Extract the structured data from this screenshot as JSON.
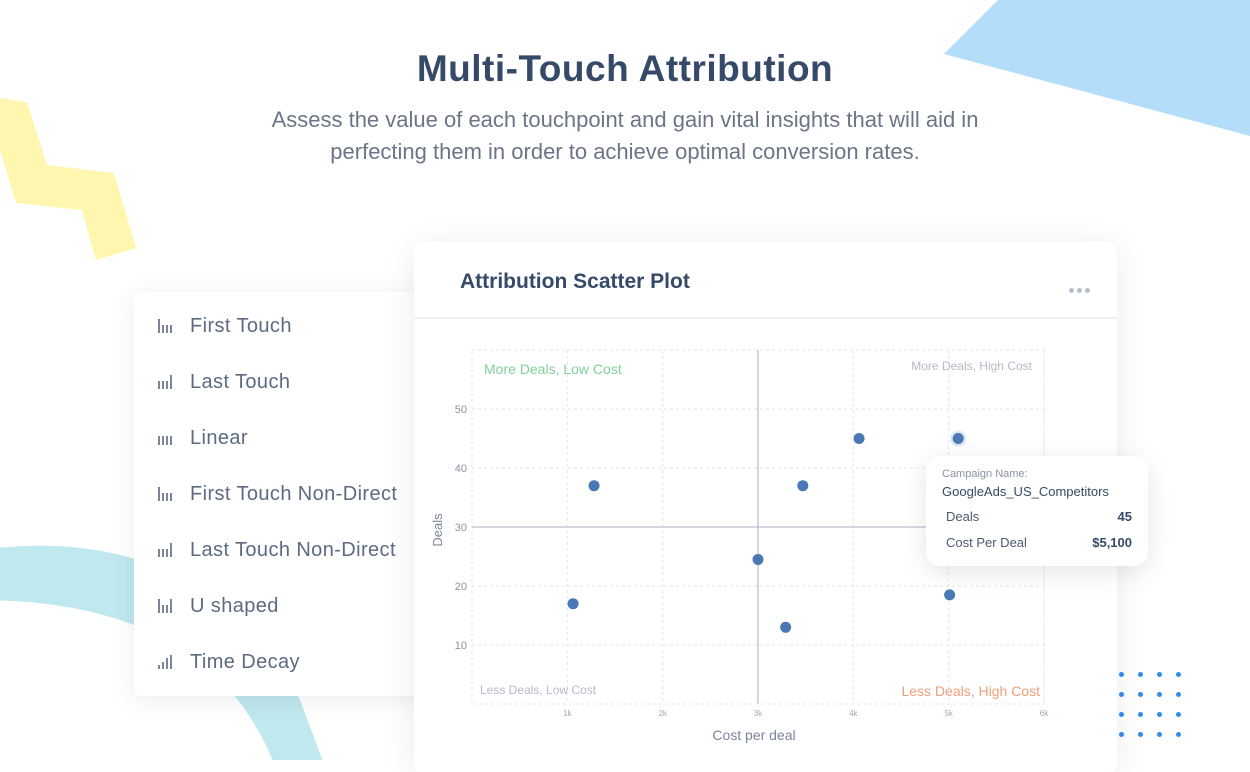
{
  "header": {
    "title": "Multi-Touch Attribution",
    "subtitle_line1": "Assess the value of each touchpoint and gain vital insights that will aid in",
    "subtitle_line2": "perfecting them in order to achieve optimal conversion rates."
  },
  "menu": {
    "items": [
      {
        "label": "First Touch",
        "icon": "first-touch-bars-icon"
      },
      {
        "label": "Last Touch",
        "icon": "last-touch-bars-icon"
      },
      {
        "label": "Linear",
        "icon": "linear-bars-icon"
      },
      {
        "label": "First Touch Non-Direct",
        "icon": "first-touch-bars-icon"
      },
      {
        "label": "Last Touch Non-Direct",
        "icon": "last-touch-bars-icon"
      },
      {
        "label": "U shaped",
        "icon": "u-shaped-bars-icon"
      },
      {
        "label": "Time Decay",
        "icon": "time-decay-bars-icon"
      }
    ]
  },
  "card": {
    "title": "Attribution Scatter Plot",
    "more_icon": "more-horizontal-icon"
  },
  "tooltip": {
    "label": "Campaign Name:",
    "name": "GoogleAds_US_Competitors",
    "rows": [
      {
        "key": "Deals",
        "value": "45"
      },
      {
        "key": "Cost Per Deal",
        "value": "$5,100"
      }
    ]
  },
  "colors": {
    "title": "#344a68",
    "point": "#4a78b5",
    "quadrant_good": "#7fd19a",
    "quadrant_bad": "#ee9e7a",
    "quadrant_neutral": "#b4bbc6",
    "deco_yellow": "#fff6b0",
    "deco_blue": "#b3ddf8",
    "deco_teal": "#c0e8ef",
    "dots": "#2f8cf0"
  },
  "chart_data": {
    "type": "scatter",
    "title": "Attribution Scatter Plot",
    "xlabel": "Cost per deal",
    "ylabel": "Deals",
    "x_ticks": [
      "1k",
      "2k",
      "3k",
      "4k",
      "5k",
      "6k"
    ],
    "y_ticks": [
      10,
      20,
      30,
      40,
      50
    ],
    "xlim": [
      0,
      6000
    ],
    "ylim": [
      0,
      60
    ],
    "grid": true,
    "quadrant_divider": {
      "x": 3000,
      "y": 30
    },
    "quadrant_labels": {
      "top_left": "More Deals, Low Cost",
      "top_right": "More Deals, High Cost",
      "bottom_left": "Less Deals, Low Cost",
      "bottom_right": "Less Deals, High Cost"
    },
    "points": [
      {
        "x": 1280,
        "y": 37
      },
      {
        "x": 1060,
        "y": 17
      },
      {
        "x": 3000,
        "y": 24.5
      },
      {
        "x": 3470,
        "y": 37
      },
      {
        "x": 3290,
        "y": 13
      },
      {
        "x": 4060,
        "y": 45
      },
      {
        "x": 5100,
        "y": 45,
        "highlighted": true,
        "campaign": "GoogleAds_US_Competitors"
      },
      {
        "x": 5010,
        "y": 18.5
      }
    ]
  }
}
